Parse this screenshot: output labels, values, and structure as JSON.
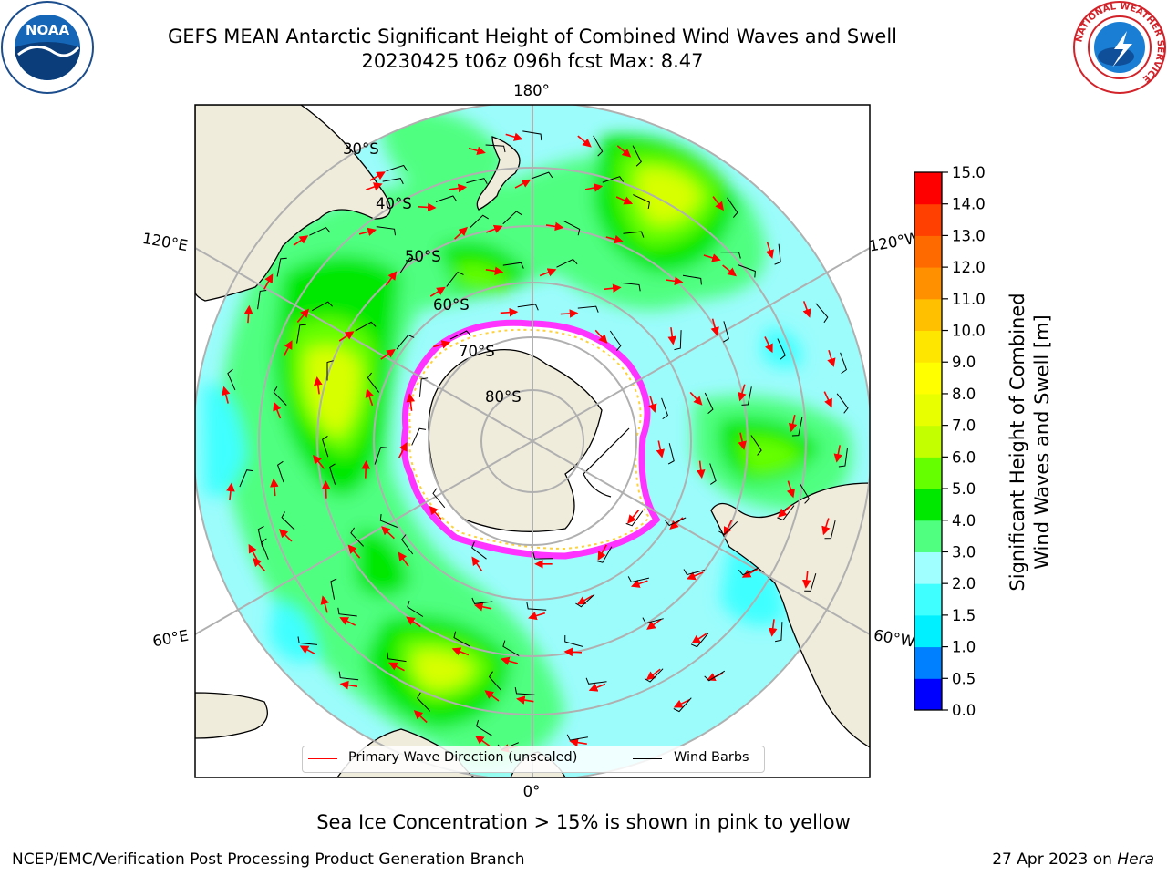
{
  "header": {
    "title_line1": "GEFS MEAN Antarctic Significant Height of Combined Wind Waves and Swell",
    "title_line2": "20230425 t06z 096h fcst   Max: 8.47"
  },
  "logos": {
    "left_text": "NOAA",
    "right_ring_text": "NATIONAL WEATHER SERVICE"
  },
  "map": {
    "projection": "south-polar-stereographic",
    "longitude_labels": [
      "180°",
      "120°E",
      "120°W",
      "60°E",
      "60°W",
      "0°"
    ],
    "latitude_labels": [
      "30°S",
      "40°S",
      "50°S",
      "60°S",
      "70°S",
      "80°S"
    ],
    "colors": {
      "ocean_base": "#9cfcfc",
      "land": "#efecdc",
      "ice_edge": "#ff33ff",
      "ice_inner": "#ffd23a",
      "grid": "#b0b0b0"
    }
  },
  "legend": {
    "wave_label": "Primary Wave Direction (unscaled)",
    "wave_color": "#ff0000",
    "wind_label": "Wind Barbs",
    "wind_color": "#000000"
  },
  "colorbar": {
    "label_line1": "Significant Height of Combined",
    "label_line2": "Wind Waves and Swell [m]",
    "ticks": [
      "0.0",
      "0.5",
      "1.0",
      "1.5",
      "2.0",
      "3.0",
      "4.0",
      "5.0",
      "6.0",
      "7.0",
      "8.0",
      "9.0",
      "10.0",
      "11.0",
      "12.0",
      "13.0",
      "14.0",
      "15.0"
    ],
    "colors": [
      "#0000ff",
      "#0080ff",
      "#00f0ff",
      "#40ffff",
      "#a0ffff",
      "#50ff80",
      "#00e800",
      "#66ff00",
      "#c4ff00",
      "#e8ff00",
      "#ffff00",
      "#ffe600",
      "#ffc000",
      "#ff9000",
      "#ff6a00",
      "#ff4000",
      "#ff0000"
    ]
  },
  "caption": "Sea Ice Concentration > 15% is shown in pink to yellow",
  "footer": {
    "left": "NCEP/EMC/Verification Post Processing Product Generation Branch",
    "right_date": "27 Apr 2023 on ",
    "right_machine": "Hera"
  }
}
